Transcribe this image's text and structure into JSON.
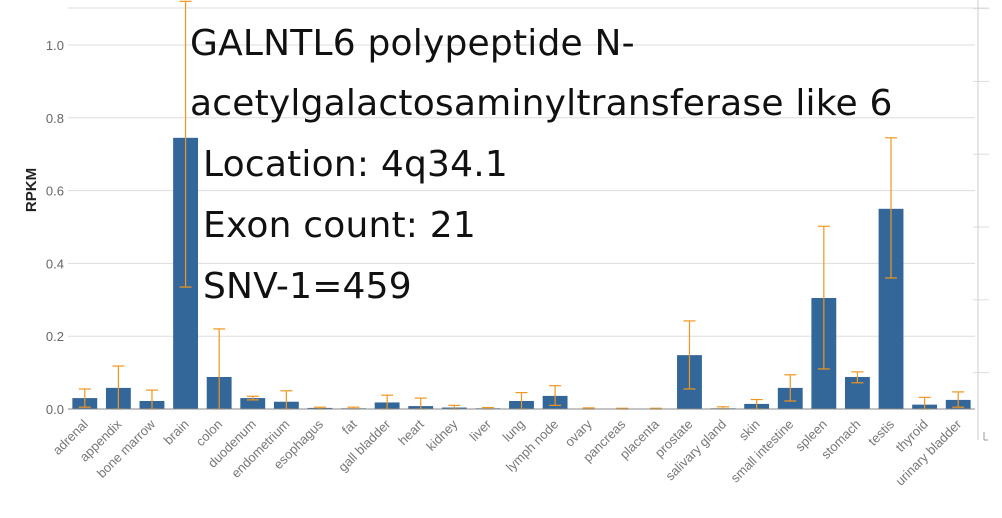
{
  "chart_data": {
    "type": "bar",
    "ylabel": "RPKM",
    "ylim": [
      0,
      1.1
    ],
    "yticks": [
      0.0,
      0.2,
      0.4,
      0.6,
      0.8,
      1.0
    ],
    "ytick_labels": [
      "0.0",
      "0.2",
      "0.4",
      "0.6",
      "0.8",
      "1.0"
    ],
    "grid": true,
    "categories": [
      "adrenal",
      "appendix",
      "bone marrow",
      "brain",
      "colon",
      "duodenum",
      "endometrium",
      "esophagus",
      "fat",
      "gall bladder",
      "heart",
      "kidney",
      "liver",
      "lung",
      "lymph node",
      "ovary",
      "pancreas",
      "placenta",
      "prostate",
      "salivary gland",
      "skin",
      "small intestine",
      "spleen",
      "stomach",
      "testis",
      "thyroid",
      "urinary bladder"
    ],
    "values": [
      0.03,
      0.058,
      0.022,
      0.745,
      0.088,
      0.03,
      0.02,
      0.003,
      0.002,
      0.018,
      0.008,
      0.004,
      0.002,
      0.022,
      0.036,
      0.001,
      0.001,
      0.001,
      0.148,
      0.002,
      0.014,
      0.058,
      0.305,
      0.088,
      0.55,
      0.012,
      0.025
    ],
    "error_low": [
      0.005,
      0.0,
      0.0,
      0.335,
      0.0,
      0.025,
      0.0,
      0.0,
      0.0,
      0.0,
      0.0,
      0.0,
      0.0,
      0.0,
      0.01,
      0.0,
      0.0,
      0.0,
      0.055,
      0.0,
      0.0,
      0.022,
      0.11,
      0.072,
      0.36,
      0.0,
      0.005
    ],
    "error_high": [
      0.055,
      0.118,
      0.052,
      1.12,
      0.22,
      0.035,
      0.05,
      0.005,
      0.005,
      0.038,
      0.03,
      0.01,
      0.004,
      0.045,
      0.064,
      0.003,
      0.002,
      0.002,
      0.242,
      0.006,
      0.026,
      0.094,
      0.502,
      0.102,
      0.745,
      0.032,
      0.047
    ],
    "bar_color": "#336699",
    "error_color": "#f0961e"
  },
  "annotation": {
    "line1": "GALNTL6 polypeptide N-",
    "line2": "acetylgalactosaminyltransferase like 6",
    "line3": "Location: 4q34.1",
    "line4": "Exon count: 21",
    "line5": "SNV-1=459"
  }
}
